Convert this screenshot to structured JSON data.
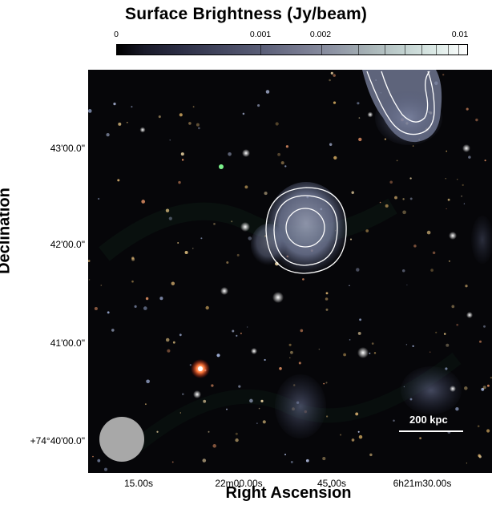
{
  "colorbar": {
    "title": "Surface Brightness (Jy/beam)",
    "ticks": [
      "0",
      "0.001",
      "0.002",
      "0.01"
    ]
  },
  "axes": {
    "xlabel": "Right Ascension",
    "ylabel": "Declination",
    "yticks": [
      "43'00.0\"",
      "42'00.0\"",
      "41'00.0\"",
      "+74°40'00.0\""
    ],
    "xticks": [
      "15.00s",
      "22m00.00s",
      "45.00s",
      "6h21m30.00s"
    ]
  },
  "scale_bar": {
    "label": "200 kpc"
  }
}
